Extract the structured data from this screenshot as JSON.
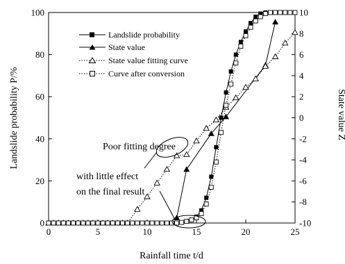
{
  "chart_data": {
    "type": "line",
    "xlabel": "Rainfall time t/d",
    "ylabel": "Landslide probability  P/%",
    "y2label": "State value Z",
    "xlim": [
      0,
      25
    ],
    "ylim": [
      0,
      100
    ],
    "y2lim": [
      -10,
      10
    ],
    "xticks": [
      "0",
      "5",
      "10",
      "15",
      "20",
      "25"
    ],
    "yticks": [
      "0",
      "20",
      "40",
      "60",
      "80",
      "100"
    ],
    "y2ticks": [
      "-10",
      "-8",
      "-6",
      "-4",
      "-2",
      "0",
      "2",
      "4",
      "6",
      "8",
      "10"
    ],
    "grid": false,
    "legend_position": "top-left",
    "series": [
      {
        "name": "Landslide probability",
        "axis": "left",
        "marker": "filled-square",
        "line": "solid",
        "x": [
          0,
          0.5,
          1,
          1.5,
          2,
          2.5,
          3,
          3.5,
          4,
          4.5,
          5,
          5.5,
          6,
          6.5,
          7,
          7.5,
          8,
          8.5,
          9,
          9.5,
          10,
          10.5,
          11,
          11.5,
          12,
          12.5,
          13,
          13.5,
          14,
          14.5,
          15,
          15.5,
          16,
          16.5,
          17,
          17.5,
          18,
          18.5,
          19,
          19.5,
          20,
          20.5,
          21,
          21.5,
          22,
          22.5,
          23,
          23.5,
          24,
          24.5,
          25
        ],
        "y": [
          0,
          0,
          0,
          0,
          0,
          0,
          0,
          0,
          0,
          0,
          0,
          0,
          0,
          0,
          0,
          0,
          0,
          0,
          0,
          0,
          0,
          0,
          0,
          0,
          0,
          0,
          0,
          0.3,
          0.8,
          1.5,
          3,
          6,
          12,
          22,
          36,
          50,
          62,
          72,
          80,
          86,
          91,
          95,
          98,
          99.5,
          100,
          100,
          100,
          100,
          100,
          100,
          100
        ]
      },
      {
        "name": "State value",
        "axis": "right",
        "marker": "filled-triangle",
        "line": "solid",
        "x": [
          13,
          14,
          16.5,
          18,
          22,
          23
        ],
        "y": [
          -9.5,
          -4.9,
          -1.5,
          0.1,
          5,
          9.1
        ]
      },
      {
        "name": "State value fitting curve",
        "axis": "right",
        "marker": "open-triangle",
        "line": "dotted",
        "x": [
          0,
          0.5,
          1,
          1.5,
          2,
          2.5,
          3,
          3.5,
          4,
          4.5,
          5,
          5.5,
          6,
          6.5,
          7,
          7.5,
          8,
          9,
          10,
          11,
          12,
          13,
          14,
          15,
          16,
          17,
          18,
          19,
          20,
          21,
          22,
          23,
          24,
          25
        ],
        "y": [
          -10,
          -10,
          -10,
          -10,
          -10,
          -10,
          -10,
          -10,
          -10,
          -10,
          -10,
          -10,
          -10,
          -10,
          -10,
          -10,
          -10,
          -8.7,
          -7.5,
          -6.2,
          -4.9,
          -3.6,
          -3.5,
          -2.2,
          -1,
          -0.2,
          1,
          1.9,
          2.9,
          3.7,
          4.9,
          5.8,
          7.1,
          8.1
        ],
        "y_axis_note": ""
      },
      {
        "name": "Curve after conversion",
        "axis": "left",
        "marker": "open-square",
        "line": "dotted",
        "x": [
          0,
          0.5,
          1,
          1.5,
          2,
          2.5,
          3,
          3.5,
          4,
          4.5,
          5,
          5.5,
          6,
          6.5,
          7,
          7.5,
          8,
          8.5,
          9,
          9.5,
          10,
          10.5,
          11,
          11.5,
          12,
          12.5,
          13,
          13.5,
          14,
          14.5,
          15,
          15.5,
          16,
          16.5,
          17,
          17.5,
          18,
          18.5,
          19,
          19.5,
          20,
          20.5,
          21,
          21.5,
          22,
          22.5,
          23,
          23.5,
          24,
          24.5,
          25
        ],
        "y": [
          0,
          0,
          0,
          0,
          0,
          0,
          0,
          0,
          0,
          0,
          0,
          0,
          0,
          0,
          0,
          0,
          0,
          0,
          0,
          0,
          0,
          0,
          0,
          0,
          0,
          0,
          0,
          0.3,
          0.8,
          1.5,
          2.5,
          4.5,
          9,
          17,
          29,
          43,
          56,
          66,
          76,
          84,
          89,
          93,
          96,
          98,
          99.5,
          100,
          100,
          100,
          100,
          100,
          100
        ]
      }
    ],
    "annotations": [
      {
        "text": "Poor fitting degree",
        "x": 14.5,
        "y": 45
      },
      {
        "text": "with little effect",
        "x": 10,
        "y": 30
      },
      {
        "text": "on the final result",
        "x": 10,
        "y": 23
      }
    ]
  }
}
